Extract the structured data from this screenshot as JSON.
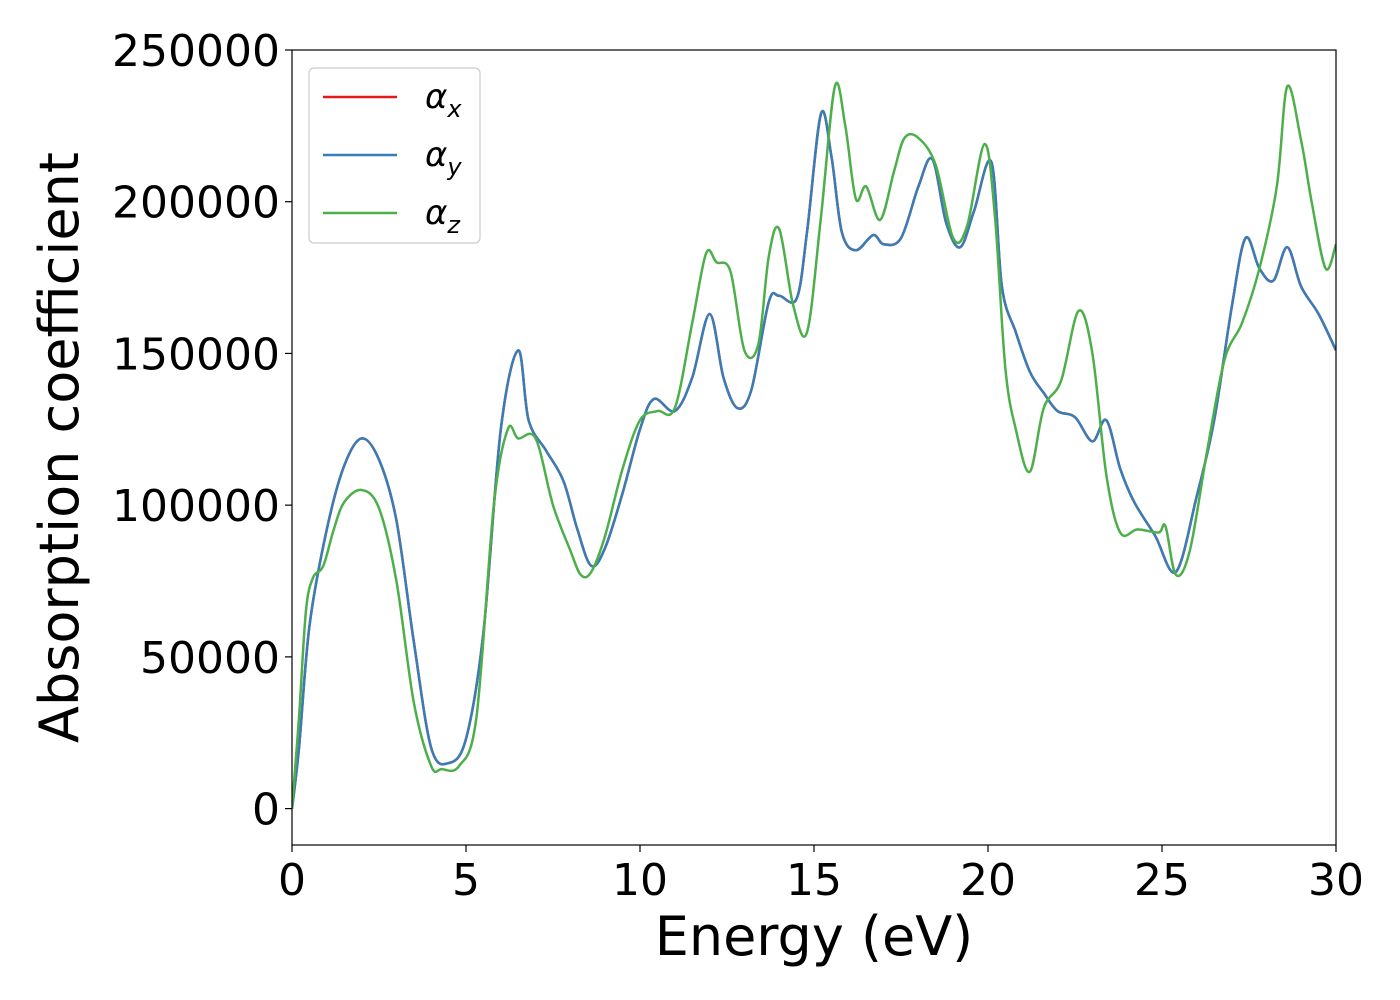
{
  "chart_data": {
    "type": "line",
    "title": "",
    "xlabel": "Energy (eV)",
    "ylabel": "Absorption coefficient",
    "xlim": [
      0,
      30
    ],
    "ylim": [
      -12000,
      250000
    ],
    "xticks": [
      0,
      5,
      10,
      15,
      20,
      25,
      30
    ],
    "xtick_labels": [
      "0",
      "5",
      "10",
      "15",
      "20",
      "25",
      "30"
    ],
    "yticks": [
      0,
      50000,
      100000,
      150000,
      200000,
      250000
    ],
    "ytick_labels": [
      "0",
      "50000",
      "100000",
      "150000",
      "200000",
      "250000"
    ],
    "grid": false,
    "legend_position": "top-left",
    "series": [
      {
        "name": "α",
        "subscript": "x",
        "color": "#e41a1c",
        "x": [
          0,
          0.2,
          0.5,
          1.0,
          1.5,
          2.0,
          2.5,
          3.0,
          3.5,
          4.0,
          4.5,
          5.0,
          5.5,
          6.0,
          6.5,
          6.8,
          7.3,
          7.8,
          8.2,
          8.6,
          9.0,
          9.5,
          10.0,
          10.4,
          11.0,
          11.5,
          12.0,
          12.4,
          12.8,
          13.2,
          13.7,
          14.0,
          14.5,
          14.8,
          15.2,
          15.5,
          15.8,
          16.2,
          16.7,
          17.0,
          17.5,
          18.0,
          18.4,
          18.8,
          19.2,
          19.6,
          20.1,
          20.4,
          20.8,
          21.2,
          21.6,
          22.0,
          22.5,
          23.0,
          23.4,
          23.8,
          24.2,
          24.8,
          25.4,
          26.0,
          26.5,
          27.0,
          27.4,
          27.8,
          28.2,
          28.6,
          29.0,
          29.5,
          30.0
        ],
        "y": [
          0,
          20000,
          60000,
          92000,
          113000,
          122000,
          115000,
          95000,
          55000,
          20000,
          15000,
          23000,
          58000,
          125000,
          151000,
          128000,
          118000,
          108000,
          92000,
          80000,
          86000,
          104000,
          125000,
          135000,
          131000,
          142000,
          163000,
          142000,
          132000,
          138000,
          167000,
          169000,
          168000,
          190000,
          229000,
          215000,
          190000,
          184000,
          189000,
          186000,
          188000,
          205000,
          214000,
          193000,
          185000,
          197000,
          213000,
          172000,
          157000,
          144000,
          137000,
          131000,
          129000,
          121000,
          128000,
          112000,
          101000,
          90000,
          78000,
          103000,
          128000,
          165000,
          188000,
          178000,
          174000,
          185000,
          172000,
          163000,
          151000
        ]
      },
      {
        "name": "α",
        "subscript": "y",
        "color": "#377eb8",
        "x": [
          0,
          0.2,
          0.5,
          1.0,
          1.5,
          2.0,
          2.5,
          3.0,
          3.5,
          4.0,
          4.5,
          5.0,
          5.5,
          6.0,
          6.5,
          6.8,
          7.3,
          7.8,
          8.2,
          8.6,
          9.0,
          9.5,
          10.0,
          10.4,
          11.0,
          11.5,
          12.0,
          12.4,
          12.8,
          13.2,
          13.7,
          14.0,
          14.5,
          14.8,
          15.2,
          15.5,
          15.8,
          16.2,
          16.7,
          17.0,
          17.5,
          18.0,
          18.4,
          18.8,
          19.2,
          19.6,
          20.1,
          20.4,
          20.8,
          21.2,
          21.6,
          22.0,
          22.5,
          23.0,
          23.4,
          23.8,
          24.2,
          24.8,
          25.4,
          26.0,
          26.5,
          27.0,
          27.4,
          27.8,
          28.2,
          28.6,
          29.0,
          29.5,
          30.0
        ],
        "y": [
          0,
          20000,
          60000,
          92000,
          113000,
          122000,
          115000,
          95000,
          55000,
          20000,
          15000,
          23000,
          58000,
          125000,
          151000,
          128000,
          118000,
          108000,
          92000,
          80000,
          86000,
          104000,
          125000,
          135000,
          131000,
          142000,
          163000,
          142000,
          132000,
          138000,
          167000,
          169000,
          168000,
          190000,
          229000,
          215000,
          190000,
          184000,
          189000,
          186000,
          188000,
          205000,
          214000,
          193000,
          185000,
          197000,
          213000,
          172000,
          157000,
          144000,
          137000,
          131000,
          129000,
          121000,
          128000,
          112000,
          101000,
          90000,
          78000,
          103000,
          128000,
          165000,
          188000,
          178000,
          174000,
          185000,
          172000,
          163000,
          151000
        ]
      },
      {
        "name": "α",
        "subscript": "z",
        "color": "#4daf4a",
        "x": [
          0,
          0.2,
          0.4,
          0.6,
          0.9,
          1.2,
          1.5,
          2.0,
          2.5,
          3.0,
          3.5,
          4.0,
          4.3,
          4.8,
          5.3,
          5.8,
          6.2,
          6.5,
          7.0,
          7.5,
          8.0,
          8.3,
          8.6,
          9.0,
          9.5,
          10.0,
          10.5,
          11.0,
          11.5,
          11.9,
          12.2,
          12.6,
          13.0,
          13.4,
          13.7,
          14.0,
          14.4,
          14.8,
          15.2,
          15.6,
          15.9,
          16.2,
          16.5,
          16.9,
          17.3,
          17.6,
          18.0,
          18.5,
          19.0,
          19.4,
          19.9,
          20.2,
          20.5,
          20.8,
          21.2,
          21.6,
          22.1,
          22.6,
          23.0,
          23.4,
          23.8,
          24.3,
          24.9,
          25.1,
          25.4,
          25.8,
          26.3,
          26.8,
          27.3,
          27.8,
          28.3,
          28.6,
          29.0,
          29.3,
          29.7,
          30.0
        ],
        "y": [
          0,
          30000,
          65000,
          76000,
          80000,
          92000,
          101000,
          105000,
          99000,
          75000,
          35000,
          14000,
          13000,
          14000,
          30000,
          100000,
          125000,
          122000,
          122000,
          100000,
          85000,
          77000,
          78000,
          90000,
          112000,
          128000,
          131000,
          132000,
          160000,
          183000,
          180000,
          177000,
          151000,
          153000,
          182000,
          191000,
          166000,
          157000,
          195000,
          238000,
          225000,
          201000,
          205000,
          194000,
          210000,
          221000,
          221000,
          212000,
          188000,
          192000,
          219000,
          195000,
          145000,
          125000,
          111000,
          132000,
          141000,
          164000,
          150000,
          110000,
          91000,
          92000,
          91000,
          93000,
          77000,
          85000,
          118000,
          148000,
          160000,
          178000,
          205000,
          238000,
          220000,
          200000,
          178000,
          186000
        ]
      }
    ]
  }
}
